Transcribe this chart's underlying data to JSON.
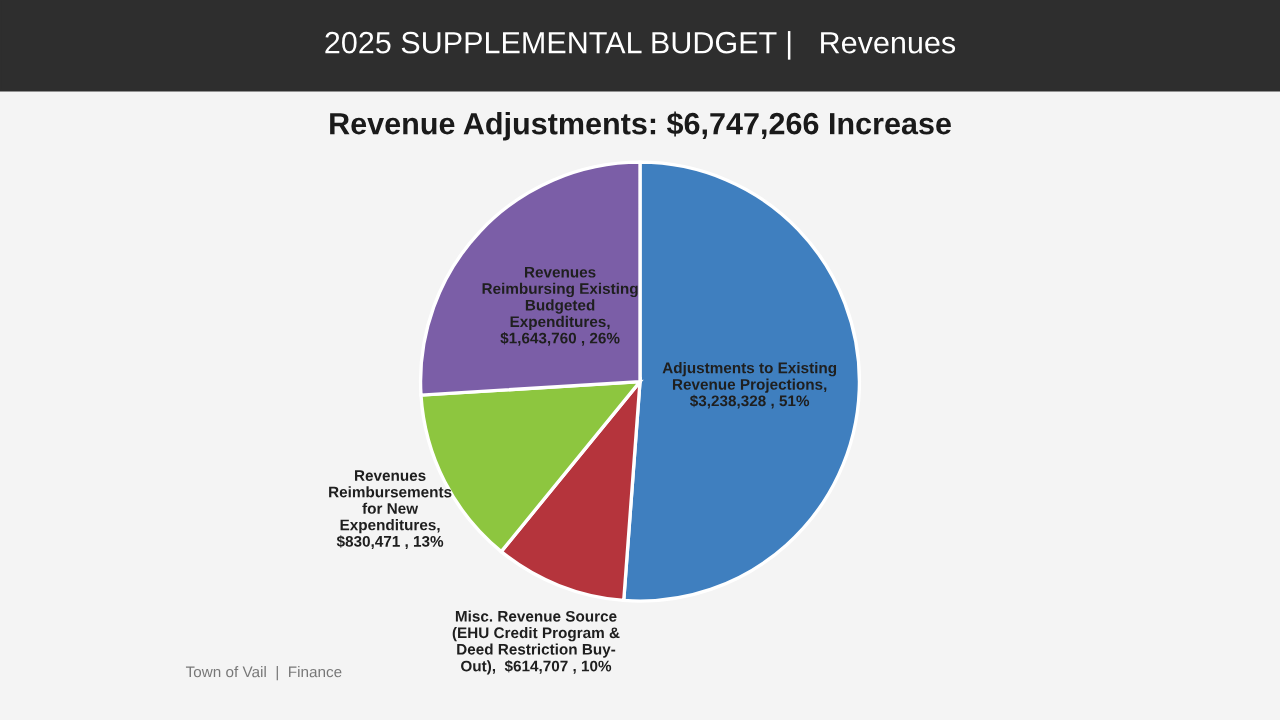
{
  "chart_data": {
    "type": "pie",
    "title": "2025 SUPPLEMENTAL BUDGET |   Revenues",
    "subtitle": "Revenue Adjustments: $6,747,266 Increase",
    "categories": [
      "Adjustments to Existing\nRevenue Projections,\n$3,238,328 , 51%",
      "Misc. Revenue Source\n(EHU Credit Program &\nDeed Restriction Buy-\nOut),  $614,707 , 10%",
      "Revenues\nReimbursements\nfor New\nExpenditures,\n$830,471 , 13%",
      "Revenues\nReimbursing Existing\nBudgeted\nExpenditures,\n$1,643,760 , 26%"
    ],
    "values": [
      3238328,
      614707,
      830471,
      1643760
    ],
    "colors": [
      "#3f7fbf",
      "#b5343c",
      "#8dc63f",
      "#7b5ea7"
    ],
    "annotations": [
      "Town of Vail  |  Finance"
    ]
  }
}
